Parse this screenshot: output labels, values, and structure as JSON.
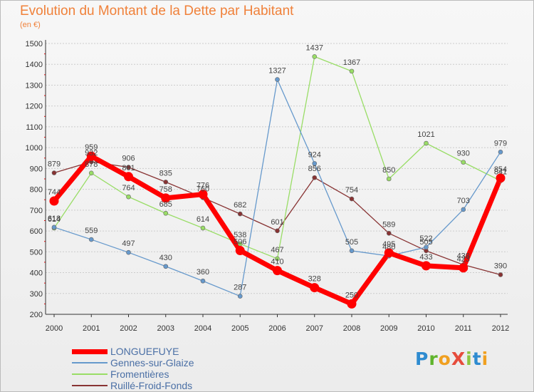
{
  "title": "Evolution du Montant de la Dette par Habitant",
  "subtitle": "(en €)",
  "logo": {
    "text": "ProXiti",
    "colors": [
      "#2e8bd0",
      "#5fb42c",
      "#f0a020",
      "#e64c3c",
      "#8cc63f",
      "#2e8bd0",
      "#f0a020"
    ]
  },
  "chart_data": {
    "type": "line",
    "x": [
      "2000",
      "2001",
      "2002",
      "2003",
      "2004",
      "2005",
      "2006",
      "2007",
      "2008",
      "2009",
      "2010",
      "2011",
      "2012"
    ],
    "ylim": [
      200,
      1500
    ],
    "yticks": [
      200,
      300,
      400,
      500,
      600,
      700,
      800,
      900,
      1000,
      1100,
      1200,
      1300,
      1400,
      1500
    ],
    "grid": "horizontal",
    "legend_position": "bottom-left",
    "series": [
      {
        "name": "LONGUEFUYE",
        "color": "#ff0000",
        "values": [
          744,
          959,
          861,
          758,
          776,
          506,
          410,
          328,
          250,
          495,
          433,
          423,
          854
        ]
      },
      {
        "name": "Gennes-sur-Glaize",
        "color": "#6699cc",
        "values": [
          618,
          559,
          497,
          430,
          360,
          287,
          1327,
          924,
          505,
          480,
          522,
          703,
          979
        ]
      },
      {
        "name": "Fromentières",
        "color": "#99dd66",
        "values": [
          614,
          878,
          764,
          685,
          614,
          538,
          467,
          1437,
          1367,
          850,
          1021,
          930,
          841
        ]
      },
      {
        "name": "Ruillé-Froid-Fonds",
        "color": "#883333",
        "values": [
          879,
          932,
          906,
          835,
          760,
          682,
          601,
          856,
          754,
          589,
          505,
          438,
          390
        ]
      }
    ]
  }
}
